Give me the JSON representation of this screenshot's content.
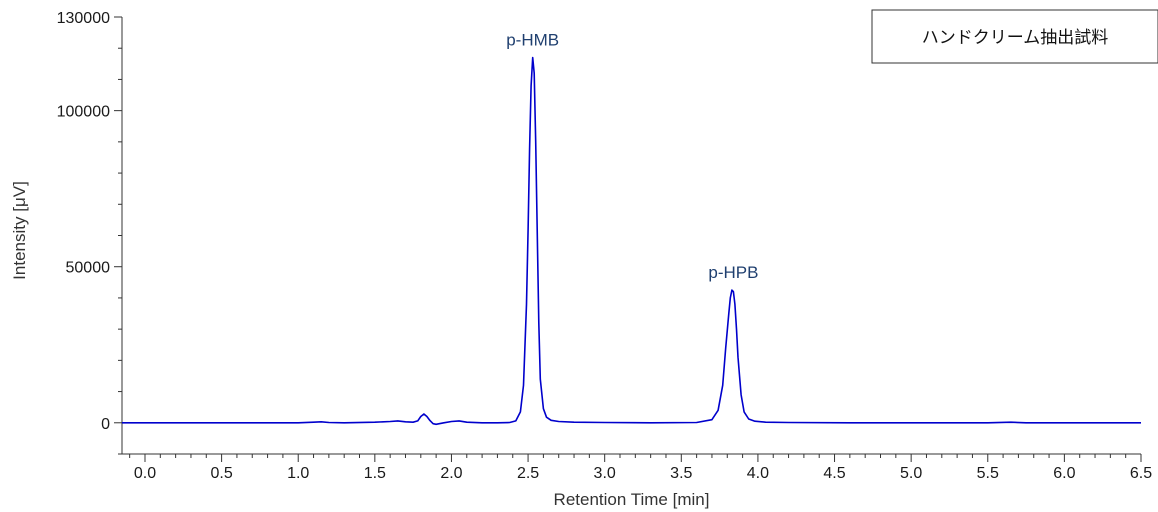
{
  "chart_data": {
    "type": "line",
    "xlabel": "Retention Time [min]",
    "ylabel": "Intensity [μV]",
    "xlim": [
      -0.15,
      6.5
    ],
    "ylim": [
      -10000,
      130000
    ],
    "x_ticks": [
      0.0,
      0.5,
      1.0,
      1.5,
      2.0,
      2.5,
      3.0,
      3.5,
      4.0,
      4.5,
      5.0,
      5.5,
      6.0,
      6.5
    ],
    "x_tick_labels": [
      "0.0",
      "0.5",
      "1.0",
      "1.5",
      "2.0",
      "2.5",
      "3.0",
      "3.5",
      "4.0",
      "4.5",
      "5.0",
      "5.5",
      "6.0",
      "6.5"
    ],
    "y_ticks": [
      0,
      50000,
      100000,
      130000
    ],
    "y_tick_labels": [
      "0",
      "50000",
      "100000",
      "130000"
    ],
    "grid": false,
    "legend_box": {
      "text": "ハンドクリーム抽出試料",
      "placement": "top-right"
    },
    "line_color": "#0000cc",
    "annotation_color": "#1f3f6f",
    "series": [
      {
        "x": [
          -0.15,
          0.5,
          1.0,
          1.1,
          1.15,
          1.2,
          1.3,
          1.5,
          1.6,
          1.65,
          1.7,
          1.75,
          1.78,
          1.8,
          1.82,
          1.84,
          1.86,
          1.88,
          1.9,
          1.95,
          2.0,
          2.05,
          2.1,
          2.2,
          2.3,
          2.38,
          2.42,
          2.45,
          2.47,
          2.49,
          2.5,
          2.51,
          2.52,
          2.53,
          2.54,
          2.55,
          2.56,
          2.57,
          2.58,
          2.6,
          2.62,
          2.65,
          2.7,
          2.8,
          3.0,
          3.3,
          3.6,
          3.7,
          3.74,
          3.77,
          3.79,
          3.81,
          3.82,
          3.83,
          3.84,
          3.85,
          3.86,
          3.87,
          3.89,
          3.91,
          3.94,
          3.98,
          4.05,
          4.2,
          4.6,
          5.0,
          5.5,
          5.65,
          5.75,
          6.0,
          6.5
        ],
        "y": [
          0,
          0,
          0,
          200,
          300,
          100,
          0,
          200,
          400,
          600,
          300,
          200,
          600,
          2000,
          2800,
          2000,
          700,
          -300,
          -500,
          0,
          400,
          600,
          200,
          0,
          0,
          100,
          600,
          3500,
          12000,
          38000,
          62000,
          88000,
          108000,
          117000,
          112000,
          90000,
          60000,
          32000,
          14000,
          4500,
          1800,
          800,
          400,
          200,
          100,
          0,
          100,
          1000,
          4000,
          12000,
          24000,
          35000,
          40000,
          42500,
          42000,
          38000,
          30000,
          21000,
          9000,
          3500,
          1200,
          500,
          200,
          100,
          0,
          0,
          0,
          200,
          0,
          0,
          0
        ]
      }
    ],
    "annotations": [
      {
        "text": "p-HMB",
        "x": 2.53,
        "y": 117000
      },
      {
        "text": "p-HPB",
        "x": 3.84,
        "y": 42500
      }
    ]
  }
}
